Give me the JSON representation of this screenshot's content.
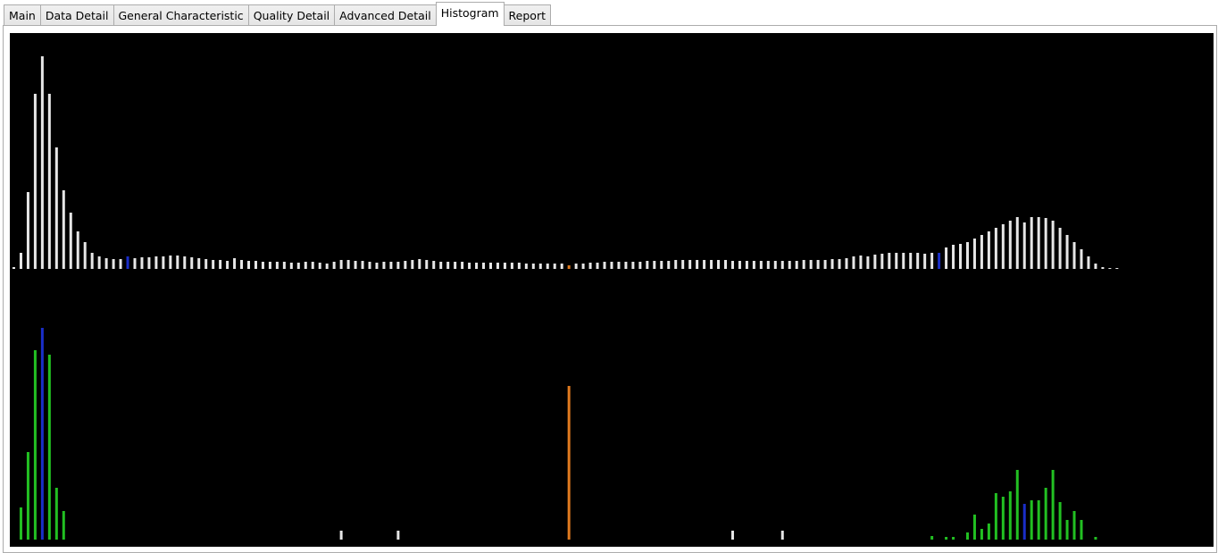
{
  "tabs": [
    "Main",
    "Data Detail",
    "General Characteristic",
    "Quality Detail",
    "Advanced Detail",
    "Histogram",
    "Report"
  ],
  "active_tab": "Histogram",
  "histograms": [
    {
      "color": "#e6e6e6",
      "ylim": [
        0,
        260
      ],
      "highlights": [
        {
          "index": 16,
          "color": "#1a2ec8"
        },
        {
          "index": 78,
          "color": "#e07a1f"
        },
        {
          "index": 130,
          "color": "#1a2ec8"
        }
      ],
      "values": [
        2,
        18,
        86,
        196,
        238,
        196,
        136,
        88,
        63,
        42,
        30,
        18,
        14,
        12,
        11,
        11,
        14,
        12,
        13,
        13,
        14,
        14,
        15,
        15,
        14,
        13,
        12,
        11,
        10,
        10,
        9,
        12,
        10,
        9,
        9,
        8,
        8,
        8,
        8,
        7,
        7,
        8,
        8,
        7,
        6,
        8,
        10,
        10,
        9,
        9,
        8,
        7,
        8,
        8,
        8,
        9,
        10,
        11,
        10,
        9,
        8,
        8,
        8,
        8,
        7,
        7,
        7,
        7,
        7,
        7,
        7,
        7,
        6,
        6,
        6,
        6,
        6,
        6,
        4,
        6,
        6,
        7,
        7,
        8,
        8,
        8,
        8,
        8,
        8,
        9,
        9,
        9,
        9,
        10,
        10,
        10,
        10,
        10,
        10,
        10,
        10,
        9,
        9,
        9,
        9,
        9,
        9,
        9,
        9,
        9,
        9,
        10,
        10,
        10,
        10,
        11,
        11,
        12,
        14,
        15,
        14,
        16,
        17,
        18,
        18,
        18,
        18,
        18,
        17,
        18,
        18,
        24,
        27,
        28,
        30,
        34,
        38,
        42,
        46,
        50,
        54,
        58,
        52,
        58,
        58,
        57,
        54,
        46,
        38,
        30,
        22,
        14,
        6,
        2,
        1,
        1
      ]
    },
    {
      "color": "#22c022",
      "ylim": [
        0,
        260
      ],
      "highlights": [
        {
          "index": 4,
          "color": "#1a2ec8"
        },
        {
          "index": 46,
          "color": "#e6e6e6"
        },
        {
          "index": 54,
          "color": "#e6e6e6"
        },
        {
          "index": 78,
          "color": "#e07a1f"
        },
        {
          "index": 101,
          "color": "#e6e6e6"
        },
        {
          "index": 108,
          "color": "#e6e6e6"
        },
        {
          "index": 142,
          "color": "#1a2ec8"
        }
      ],
      "values": [
        0,
        36,
        98,
        212,
        237,
        207,
        58,
        32,
        0,
        0,
        0,
        0,
        0,
        0,
        0,
        0,
        0,
        0,
        0,
        0,
        0,
        0,
        0,
        0,
        0,
        0,
        0,
        0,
        0,
        0,
        0,
        0,
        0,
        0,
        0,
        0,
        0,
        0,
        0,
        0,
        0,
        0,
        0,
        0,
        0,
        0,
        10,
        0,
        0,
        0,
        0,
        0,
        0,
        0,
        10,
        0,
        0,
        0,
        0,
        0,
        0,
        0,
        0,
        0,
        0,
        0,
        0,
        0,
        0,
        0,
        0,
        0,
        0,
        0,
        0,
        0,
        0,
        0,
        172,
        0,
        0,
        0,
        0,
        0,
        0,
        0,
        0,
        0,
        0,
        0,
        0,
        0,
        0,
        0,
        0,
        0,
        0,
        0,
        0,
        0,
        0,
        10,
        0,
        0,
        0,
        0,
        0,
        0,
        10,
        0,
        0,
        0,
        0,
        0,
        0,
        0,
        0,
        0,
        0,
        0,
        0,
        0,
        0,
        0,
        0,
        0,
        0,
        0,
        0,
        4,
        0,
        3,
        3,
        0,
        8,
        28,
        12,
        18,
        52,
        48,
        54,
        78,
        40,
        44,
        44,
        58,
        78,
        42,
        22,
        32,
        22,
        0,
        3,
        0,
        0,
        0
      ]
    }
  ]
}
